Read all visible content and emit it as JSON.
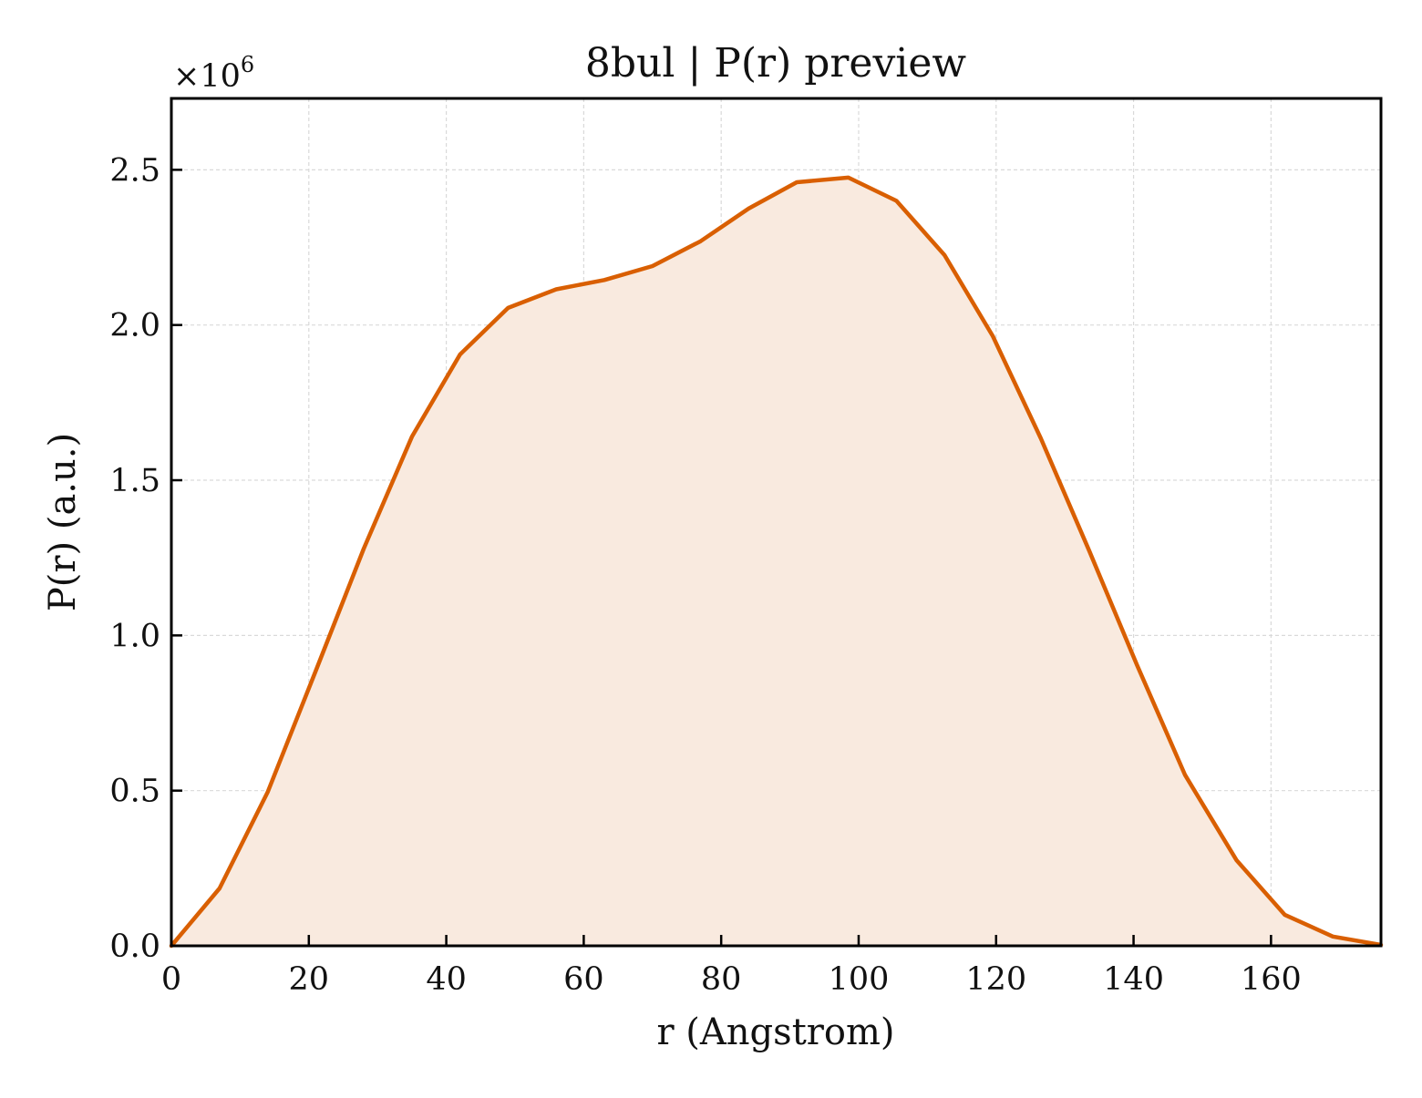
{
  "chart_data": {
    "type": "area",
    "title": "8bul | P(r) preview",
    "xlabel": "r (Angstrom)",
    "ylabel": "P(r) (a.u.)",
    "y_multiplier": {
      "base": "×10",
      "exponent": "6"
    },
    "xlim": [
      0,
      176
    ],
    "ylim": [
      0,
      2.73
    ],
    "x_ticks": [
      0,
      20,
      40,
      60,
      80,
      100,
      120,
      140,
      160
    ],
    "y_ticks": [
      0.0,
      0.5,
      1.0,
      1.5,
      2.0,
      2.5
    ],
    "y_tick_labels": [
      "0.0",
      "0.5",
      "1.0",
      "1.5",
      "2.0",
      "2.5"
    ],
    "grid": true,
    "legend": "none",
    "series": [
      {
        "x": [
          0,
          7,
          14,
          21,
          28,
          35,
          42,
          49,
          56,
          63,
          70,
          77,
          84,
          91,
          98.5,
          105.5,
          112.5,
          119.5,
          126.5,
          133.5,
          140.5,
          147.5,
          155,
          162,
          169,
          176
        ],
        "y": [
          0.0,
          0.185,
          0.495,
          0.885,
          1.28,
          1.64,
          1.905,
          2.055,
          2.115,
          2.145,
          2.19,
          2.27,
          2.375,
          2.46,
          2.475,
          2.4,
          2.225,
          1.965,
          1.635,
          1.275,
          0.905,
          0.55,
          0.275,
          0.1,
          0.03,
          0.003
        ]
      }
    ],
    "colors": {
      "line": "#d95f02",
      "fill": "#f9eadf",
      "grid": "#d9d9d9",
      "axis": "#000000"
    }
  }
}
